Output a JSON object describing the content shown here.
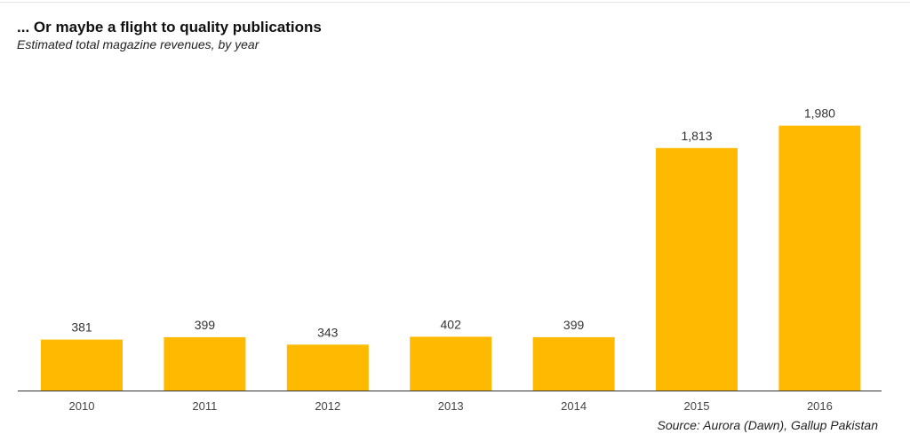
{
  "title": "... Or maybe a flight to quality publications",
  "subtitle": "Estimated total magazine revenues, by year",
  "source": "Source: Aurora (Dawn),  Gallup Pakistan",
  "colors": {
    "bar": "#FFBA00",
    "axis": "#333333"
  },
  "chart_data": {
    "type": "bar",
    "title": "... Or maybe a flight to quality publications",
    "subtitle": "Estimated total magazine revenues, by year",
    "categories": [
      "2010",
      "2011",
      "2012",
      "2013",
      "2014",
      "2015",
      "2016"
    ],
    "values": [
      381,
      399,
      343,
      402,
      399,
      1813,
      1980
    ],
    "value_labels": [
      "381",
      "399",
      "343",
      "402",
      "399",
      "1,813",
      "1,980"
    ],
    "xlabel": "",
    "ylabel": "",
    "ylim": [
      0,
      2000
    ],
    "grid": false,
    "legend": "none"
  }
}
